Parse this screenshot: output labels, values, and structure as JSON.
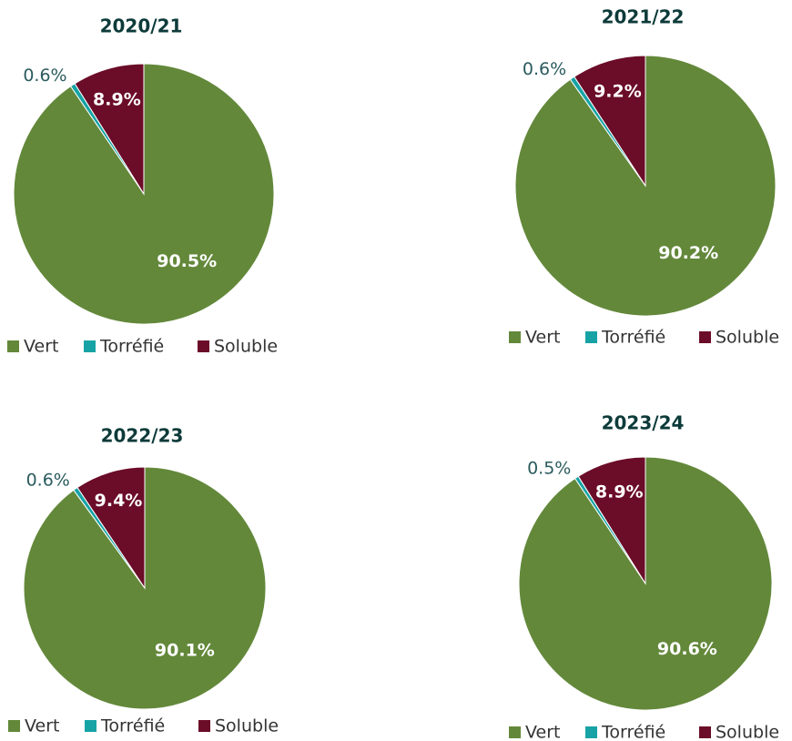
{
  "chart_data": [
    {
      "type": "pie",
      "title": "2020/21",
      "categories": [
        "Vert",
        "Torréfié",
        "Soluble"
      ],
      "values": [
        90.5,
        0.6,
        8.9
      ],
      "value_labels": [
        "90.5%",
        "0.6%",
        "8.9%"
      ],
      "colors": [
        "#63883a",
        "#17a3a5",
        "#6b0c28"
      ]
    },
    {
      "type": "pie",
      "title": "2021/22",
      "categories": [
        "Vert",
        "Torréfié",
        "Soluble"
      ],
      "values": [
        90.2,
        0.6,
        9.2
      ],
      "value_labels": [
        "90.2%",
        "0.6%",
        "9.2%"
      ],
      "colors": [
        "#63883a",
        "#17a3a5",
        "#6b0c28"
      ]
    },
    {
      "type": "pie",
      "title": "2022/23",
      "categories": [
        "Vert",
        "Torréfié",
        "Soluble"
      ],
      "values": [
        90.1,
        0.6,
        9.4
      ],
      "value_labels": [
        "90.1%",
        "0.6%",
        "9.4%"
      ],
      "colors": [
        "#63883a",
        "#17a3a5",
        "#6b0c28"
      ]
    },
    {
      "type": "pie",
      "title": "2023/24",
      "categories": [
        "Vert",
        "Torréfié",
        "Soluble"
      ],
      "values": [
        90.6,
        0.5,
        8.9
      ],
      "value_labels": [
        "90.6%",
        "0.5%",
        "8.9%"
      ],
      "colors": [
        "#63883a",
        "#17a3a5",
        "#6b0c28"
      ]
    }
  ]
}
